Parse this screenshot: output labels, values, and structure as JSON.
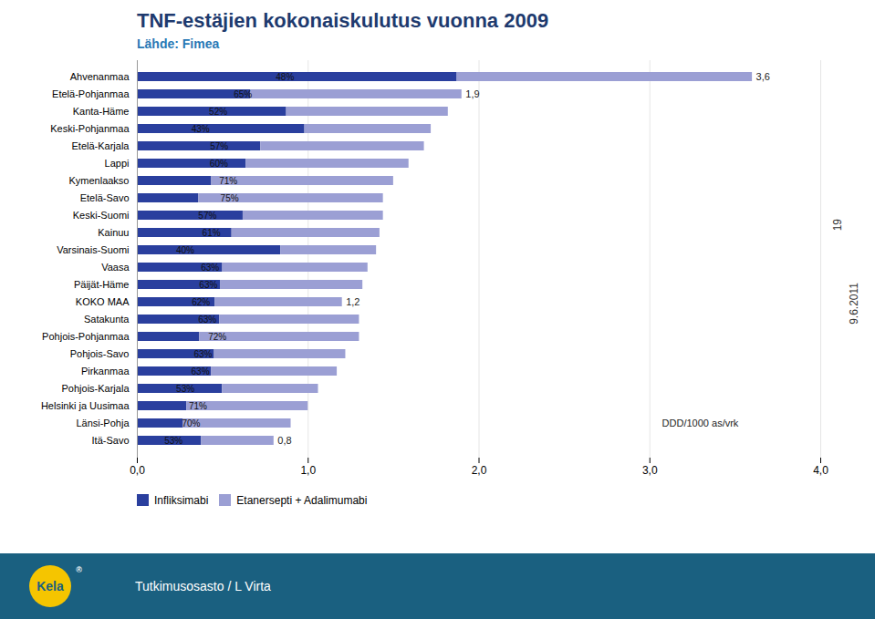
{
  "chart_data": {
    "type": "bar",
    "orientation": "horizontal",
    "stacked": true,
    "title": "TNF-estäjien kokonaiskulutus vuonna 2009",
    "subtitle": "Lähde: Fimea",
    "categories": [
      "Ahvenanmaa",
      "Etelä-Pohjanmaa",
      "Kanta-Häme",
      "Keski-Pohjanmaa",
      "Etelä-Karjala",
      "Lappi",
      "Kymenlaakso",
      "Etelä-Savo",
      "Keski-Suomi",
      "Kainuu",
      "Varsinais-Suomi",
      "Vaasa",
      "Päijät-Häme",
      "KOKO MAA",
      "Satakunta",
      "Pohjois-Pohjanmaa",
      "Pohjois-Savo",
      "Pirkanmaa",
      "Pohjois-Karjala",
      "Helsinki ja Uusimaa",
      "Länsi-Pohja",
      "Itä-Savo"
    ],
    "series": [
      {
        "name": "Infliksimabi",
        "color": "#2a3f9e",
        "values": [
          1.872,
          0.665,
          0.8736,
          0.9804,
          0.7224,
          0.636,
          0.435,
          0.36,
          0.6192,
          0.5538,
          0.84,
          0.4995,
          0.4884,
          0.456,
          0.481,
          0.364,
          0.4514,
          0.4329,
          0.4982,
          0.29,
          0.27,
          0.376
        ]
      },
      {
        "name": "Etanersepti + Adalimumabi",
        "color": "#9b9fd4",
        "values": [
          1.728,
          1.235,
          0.9464,
          0.7396,
          0.9576,
          0.954,
          1.065,
          1.08,
          0.8208,
          0.8662,
          0.56,
          0.8505,
          0.8316,
          0.744,
          0.819,
          0.936,
          0.7686,
          0.7371,
          0.5618,
          0.71,
          0.63,
          0.424
        ],
        "share_labels": [
          "48%",
          "65%",
          "52%",
          "43%",
          "57%",
          "60%",
          "71%",
          "75%",
          "57%",
          "61%",
          "40%",
          "63%",
          "63%",
          "62%",
          "63%",
          "72%",
          "63%",
          "63%",
          "53%",
          "71%",
          "70%",
          "53%"
        ]
      }
    ],
    "xlim": [
      0.0,
      4.0
    ],
    "xticks": [
      {
        "value": 0.0,
        "label": "0,0"
      },
      {
        "value": 1.0,
        "label": "1,0"
      },
      {
        "value": 2.0,
        "label": "2,0"
      },
      {
        "value": 3.0,
        "label": "3,0"
      },
      {
        "value": 4.0,
        "label": "4,0"
      }
    ],
    "grid": true,
    "legend": "lower left",
    "annotations": [
      {
        "category": "Ahvenanmaa",
        "x": 3.6,
        "text": "3,6"
      },
      {
        "category": "Etelä-Pohjanmaa",
        "x": 1.9,
        "text": "1,9"
      },
      {
        "category": "KOKO MAA",
        "x": 1.2,
        "text": "1,2"
      },
      {
        "category": "Itä-Savo",
        "x": 0.8,
        "text": "0,8"
      },
      {
        "category": "Länsi-Pohja",
        "x": 3.05,
        "text": "DDD/1000 as/vrk"
      }
    ],
    "side_labels": [
      "19",
      "9.6.2011"
    ],
    "footer": {
      "logo": "Kela",
      "logo_mark": "®",
      "text": "Tutkimusosasto / L Virta"
    }
  }
}
